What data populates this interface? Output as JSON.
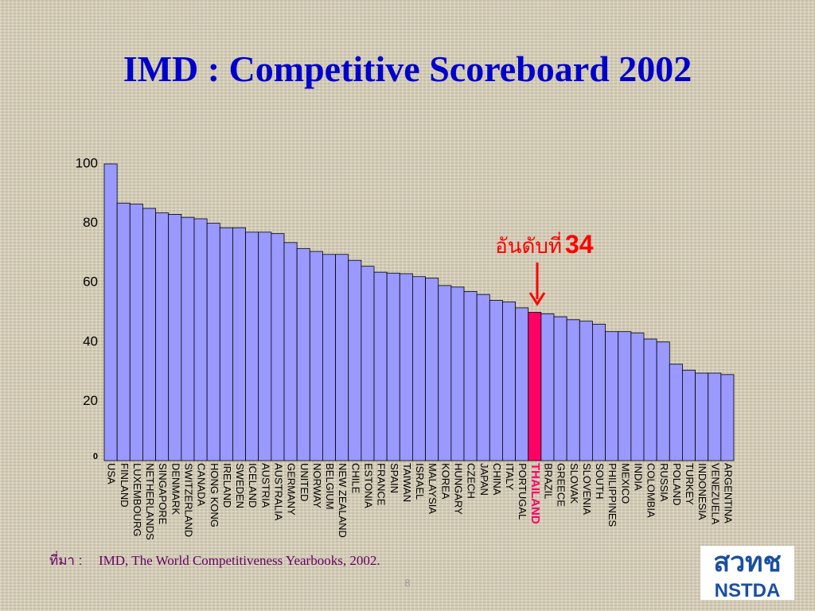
{
  "chart_data": {
    "type": "bar",
    "title": "IMD : Competitive Scoreboard 2002",
    "categories": [
      "USA",
      "FINLAND",
      "LUXEMBOURG",
      "NETHERLANDS",
      "SINGAPORE",
      "DENMARK",
      "SWITZERLAND",
      "CANADA",
      "HONG KONG",
      "IRELAND",
      "SWEDEN",
      "ICELAND",
      "AUSTRIA",
      "AUSTRALIA",
      "GERMANY",
      "UNITED",
      "NORWAY",
      "BELGIUM",
      "NEW ZEALAND",
      "CHILE",
      "ESTONIA",
      "FRANCE",
      "SPAIN",
      "TAIWAN",
      "ISRAEL",
      "MALAYSIA",
      "KOREA",
      "HUNGARY",
      "CZECH",
      "JAPAN",
      "CHINA",
      "ITALY",
      "PORTUGAL",
      "THAILAND",
      "BRAZIL",
      "GREECE",
      "SLOVAK",
      "SLOVENIA",
      "SOUTH",
      "PHILIPPINES",
      "MEXICO",
      "INDIA",
      "COLOMBIA",
      "RUSSIA",
      "POLAND",
      "TURKEY",
      "INDONESIA",
      "VENEZUELA",
      "ARGENTINA"
    ],
    "values": [
      100,
      86.8,
      86.5,
      85,
      83.5,
      83,
      82,
      81.5,
      80,
      78.5,
      78.5,
      77,
      77,
      76.5,
      73.5,
      71.5,
      70.5,
      69.5,
      69.5,
      67.5,
      65.5,
      63.5,
      63.2,
      63,
      62,
      61.5,
      59,
      58.5,
      57,
      56,
      54,
      53.5,
      51.5,
      50,
      49.5,
      48.5,
      47.5,
      47,
      46,
      43.5,
      43.5,
      43,
      41,
      40,
      32.5,
      30.5,
      29.5,
      29.5,
      29
    ],
    "colors": [
      "#9999ff",
      "#9999ff",
      "#9999ff",
      "#9999ff",
      "#9999ff",
      "#9999ff",
      "#9999ff",
      "#9999ff",
      "#9999ff",
      "#9999ff",
      "#9999ff",
      "#9999ff",
      "#9999ff",
      "#9999ff",
      "#9999ff",
      "#9999ff",
      "#9999ff",
      "#9999ff",
      "#9999ff",
      "#9999ff",
      "#9999ff",
      "#9999ff",
      "#9999ff",
      "#9999ff",
      "#9999ff",
      "#9999ff",
      "#9999ff",
      "#9999ff",
      "#9999ff",
      "#9999ff",
      "#9999ff",
      "#9999ff",
      "#9999ff",
      "#ff0066",
      "#9999ff",
      "#9999ff",
      "#9999ff",
      "#9999ff",
      "#9999ff",
      "#9999ff",
      "#9999ff",
      "#9999ff",
      "#9999ff",
      "#9999ff",
      "#9999ff",
      "#9999ff",
      "#9999ff",
      "#9999ff",
      "#9999ff"
    ],
    "ylim": [
      0,
      100
    ],
    "yticks": [
      0,
      20,
      40,
      60,
      80,
      100
    ],
    "annotation": {
      "text": "อันดับที่",
      "rank": "34"
    },
    "source": {
      "prefix": "ที่มา :",
      "text": "IMD, The World Competitiveness Yearbooks, 2002."
    }
  },
  "page_number": "8",
  "logo": {
    "thai": "สวทช",
    "english": "NSTDA"
  }
}
